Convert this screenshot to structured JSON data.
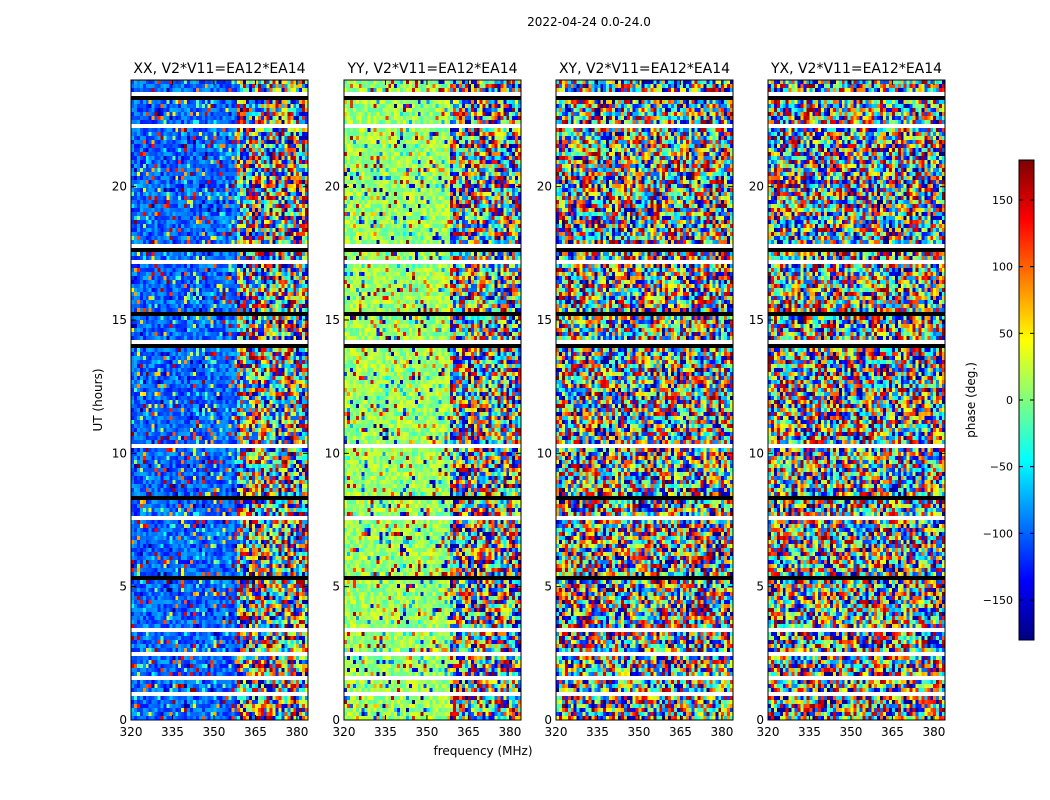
{
  "figure": {
    "suptitle": "2022-04-24 0.0-24.0",
    "xlabel": "frequency (MHz)",
    "ylabel": "UT (hours)"
  },
  "colorbar": {
    "label": "phase (deg.)",
    "range": [
      -180,
      180
    ],
    "ticks": [
      150,
      100,
      50,
      0,
      -50,
      -100,
      -150
    ],
    "tick_labels": [
      "150",
      "100",
      "50",
      "0",
      "−50",
      "−100",
      "−150"
    ],
    "colormap": "jet",
    "colors": [
      "#00007f",
      "#0000ff",
      "#007fff",
      "#00ffff",
      "#7fff7f",
      "#ffff00",
      "#ff7f00",
      "#ff0000",
      "#7f0000"
    ]
  },
  "chart_data": [
    {
      "type": "heatmap",
      "title": "XX, V2*V11=EA12*EA14",
      "x_ticks": [
        320,
        335,
        350,
        365,
        380
      ],
      "y_ticks": [
        0,
        5,
        10,
        15,
        20
      ],
      "xlim": [
        320,
        384
      ],
      "ylim": [
        0,
        24
      ],
      "value": "phase (deg.)",
      "vrange": [
        -180,
        180
      ],
      "coherent_phase_deg": -100,
      "coherent_fraction": 0.6
    },
    {
      "type": "heatmap",
      "title": "YY, V2*V11=EA12*EA14",
      "x_ticks": [
        320,
        335,
        350,
        365,
        380
      ],
      "y_ticks": [
        0,
        5,
        10,
        15,
        20
      ],
      "xlim": [
        320,
        384
      ],
      "ylim": [
        0,
        24
      ],
      "value": "phase (deg.)",
      "vrange": [
        -180,
        180
      ],
      "coherent_phase_deg": 10,
      "coherent_fraction": 0.6
    },
    {
      "type": "heatmap",
      "title": "XY, V2*V11=EA12*EA14",
      "x_ticks": [
        320,
        335,
        350,
        365,
        380
      ],
      "y_ticks": [
        0,
        5,
        10,
        15,
        20
      ],
      "xlim": [
        320,
        384
      ],
      "ylim": [
        0,
        24
      ],
      "value": "phase (deg.)",
      "vrange": [
        -180,
        180
      ],
      "coherent_phase_deg": 0,
      "coherent_fraction": 0.0
    },
    {
      "type": "heatmap",
      "title": "YX, V2*V11=EA12*EA14",
      "x_ticks": [
        320,
        335,
        350,
        365,
        380
      ],
      "y_ticks": [
        0,
        5,
        10,
        15,
        20
      ],
      "xlim": [
        320,
        384
      ],
      "ylim": [
        0,
        24
      ],
      "value": "phase (deg.)",
      "vrange": [
        -180,
        180
      ],
      "coherent_phase_deg": 0,
      "coherent_fraction": 0.0
    }
  ],
  "flagged_ut_bands": [
    [
      0.9,
      1.0
    ],
    [
      1.5,
      1.6
    ],
    [
      2.4,
      2.5
    ],
    [
      3.3,
      3.5
    ],
    [
      4.3,
      4.4
    ],
    [
      5.2,
      5.4
    ],
    [
      7.5,
      7.7
    ],
    [
      8.3,
      8.4
    ],
    [
      10.2,
      10.3
    ],
    [
      12.4,
      12.5
    ],
    [
      14.0,
      14.2
    ],
    [
      15.2,
      15.3
    ],
    [
      17.1,
      17.3
    ],
    [
      17.6,
      17.8
    ],
    [
      22.2,
      22.3
    ],
    [
      23.3,
      23.5
    ]
  ]
}
